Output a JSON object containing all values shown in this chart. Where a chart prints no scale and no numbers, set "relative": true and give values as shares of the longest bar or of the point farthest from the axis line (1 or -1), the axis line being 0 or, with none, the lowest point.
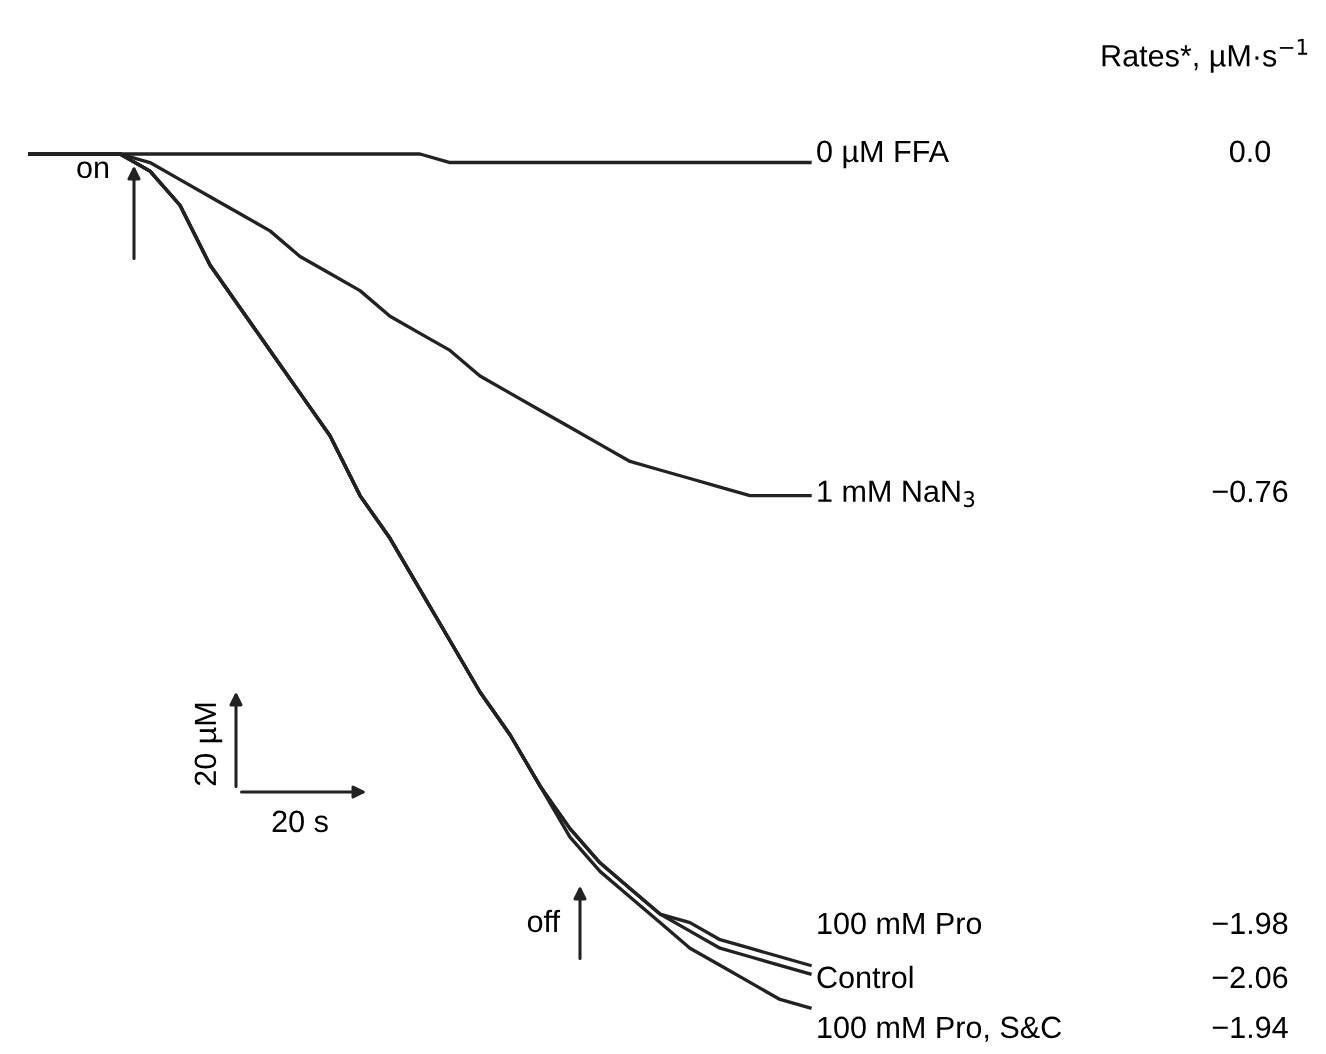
{
  "chart_data": {
    "type": "line",
    "relative": true,
    "line_style": "solid",
    "categories": [
      null,
      null,
      null,
      null,
      null,
      null,
      null,
      null,
      null,
      null,
      null,
      null,
      null,
      null,
      null,
      null,
      null,
      null,
      null,
      null,
      null,
      null,
      null,
      null,
      null,
      null,
      null
    ],
    "series": [
      {
        "name": "0 µM FFA",
        "color": "#222222",
        "values": [
          1,
          1,
          1,
          1,
          1,
          1,
          1,
          1,
          1,
          1,
          1,
          1,
          1,
          1,
          0.99,
          0.99,
          0.99,
          0.99,
          0.99,
          0.99,
          0.99,
          0.99,
          0.99,
          0.99,
          0.99,
          0.99,
          0.99
        ]
      },
      {
        "name": "1 mM NaN$_{3}$",
        "color": "#222222",
        "values": [
          1,
          1,
          1,
          1,
          0.99,
          0.97,
          0.95,
          0.93,
          0.91,
          0.88,
          0.86,
          0.84,
          0.81,
          0.79,
          0.77,
          0.74,
          0.72,
          0.7,
          0.68,
          0.66,
          0.64,
          0.63,
          0.62,
          0.61,
          0.6,
          0.6,
          0.6
        ]
      },
      {
        "name": "100 mM Pro",
        "color": "#222222",
        "values": [
          1,
          1,
          1,
          1,
          0.98,
          0.94,
          0.87,
          0.82,
          0.77,
          0.72,
          0.67,
          0.6,
          0.55,
          0.49,
          0.43,
          0.37,
          0.32,
          0.26,
          0.21,
          0.17,
          0.14,
          0.11,
          0.1,
          0.08,
          0.07,
          0.06,
          0.05
        ]
      },
      {
        "name": "Control",
        "color": "#222222",
        "values": [
          1,
          1,
          1,
          1,
          0.98,
          0.94,
          0.87,
          0.82,
          0.77,
          0.72,
          0.67,
          0.6,
          0.55,
          0.49,
          0.43,
          0.37,
          0.32,
          0.26,
          0.21,
          0.17,
          0.14,
          0.11,
          0.09,
          0.07,
          0.06,
          0.05,
          0.04
        ]
      },
      {
        "name": "100 mM Pro, S&C",
        "color": "#222222",
        "values": [
          1,
          1,
          1,
          1,
          0.98,
          0.94,
          0.87,
          0.82,
          0.77,
          0.72,
          0.67,
          0.6,
          0.55,
          0.49,
          0.43,
          0.37,
          0.32,
          0.26,
          0.2,
          0.16,
          0.13,
          0.1,
          0.07,
          0.05,
          0.03,
          0.01,
          0
        ]
      }
    ],
    "annotations": [
      "Rates*, µM·s$^{−1}$",
      "0.0",
      "−0.76",
      "−1.98",
      "−2.06",
      "−1.94",
      "on",
      "off",
      "20 µM",
      "20 s"
    ]
  }
}
